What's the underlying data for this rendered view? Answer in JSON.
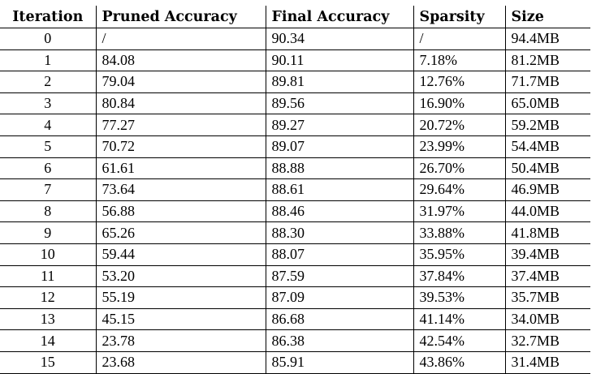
{
  "table": {
    "headers": [
      "Iteration",
      "Pruned Accuracy",
      "Final Accuracy",
      "Sparsity",
      "Size"
    ],
    "rows": [
      [
        "0",
        "/",
        "90.34",
        "/",
        "94.4MB"
      ],
      [
        "1",
        "84.08",
        "90.11",
        "7.18%",
        "81.2MB"
      ],
      [
        "2",
        "79.04",
        "89.81",
        "12.76%",
        "71.7MB"
      ],
      [
        "3",
        "80.84",
        "89.56",
        "16.90%",
        "65.0MB"
      ],
      [
        "4",
        "77.27",
        "89.27",
        "20.72%",
        "59.2MB"
      ],
      [
        "5",
        "70.72",
        "89.07",
        "23.99%",
        "54.4MB"
      ],
      [
        "6",
        "61.61",
        "88.88",
        "26.70%",
        "50.4MB"
      ],
      [
        "7",
        "73.64",
        "88.61",
        "29.64%",
        "46.9MB"
      ],
      [
        "8",
        "56.88",
        "88.46",
        "31.97%",
        "44.0MB"
      ],
      [
        "9",
        "65.26",
        "88.30",
        "33.88%",
        "41.8MB"
      ],
      [
        "10",
        "59.44",
        "88.07",
        "35.95%",
        "39.4MB"
      ],
      [
        "11",
        "53.20",
        "87.59",
        "37.84%",
        "37.4MB"
      ],
      [
        "12",
        "55.19",
        "87.09",
        "39.53%",
        "35.7MB"
      ],
      [
        "13",
        "45.15",
        "86.68",
        "41.14%",
        "34.0MB"
      ],
      [
        "14",
        "23.78",
        "86.38",
        "42.54%",
        "32.7MB"
      ],
      [
        "15",
        "23.68",
        "85.91",
        "43.86%",
        "31.4MB"
      ]
    ]
  }
}
